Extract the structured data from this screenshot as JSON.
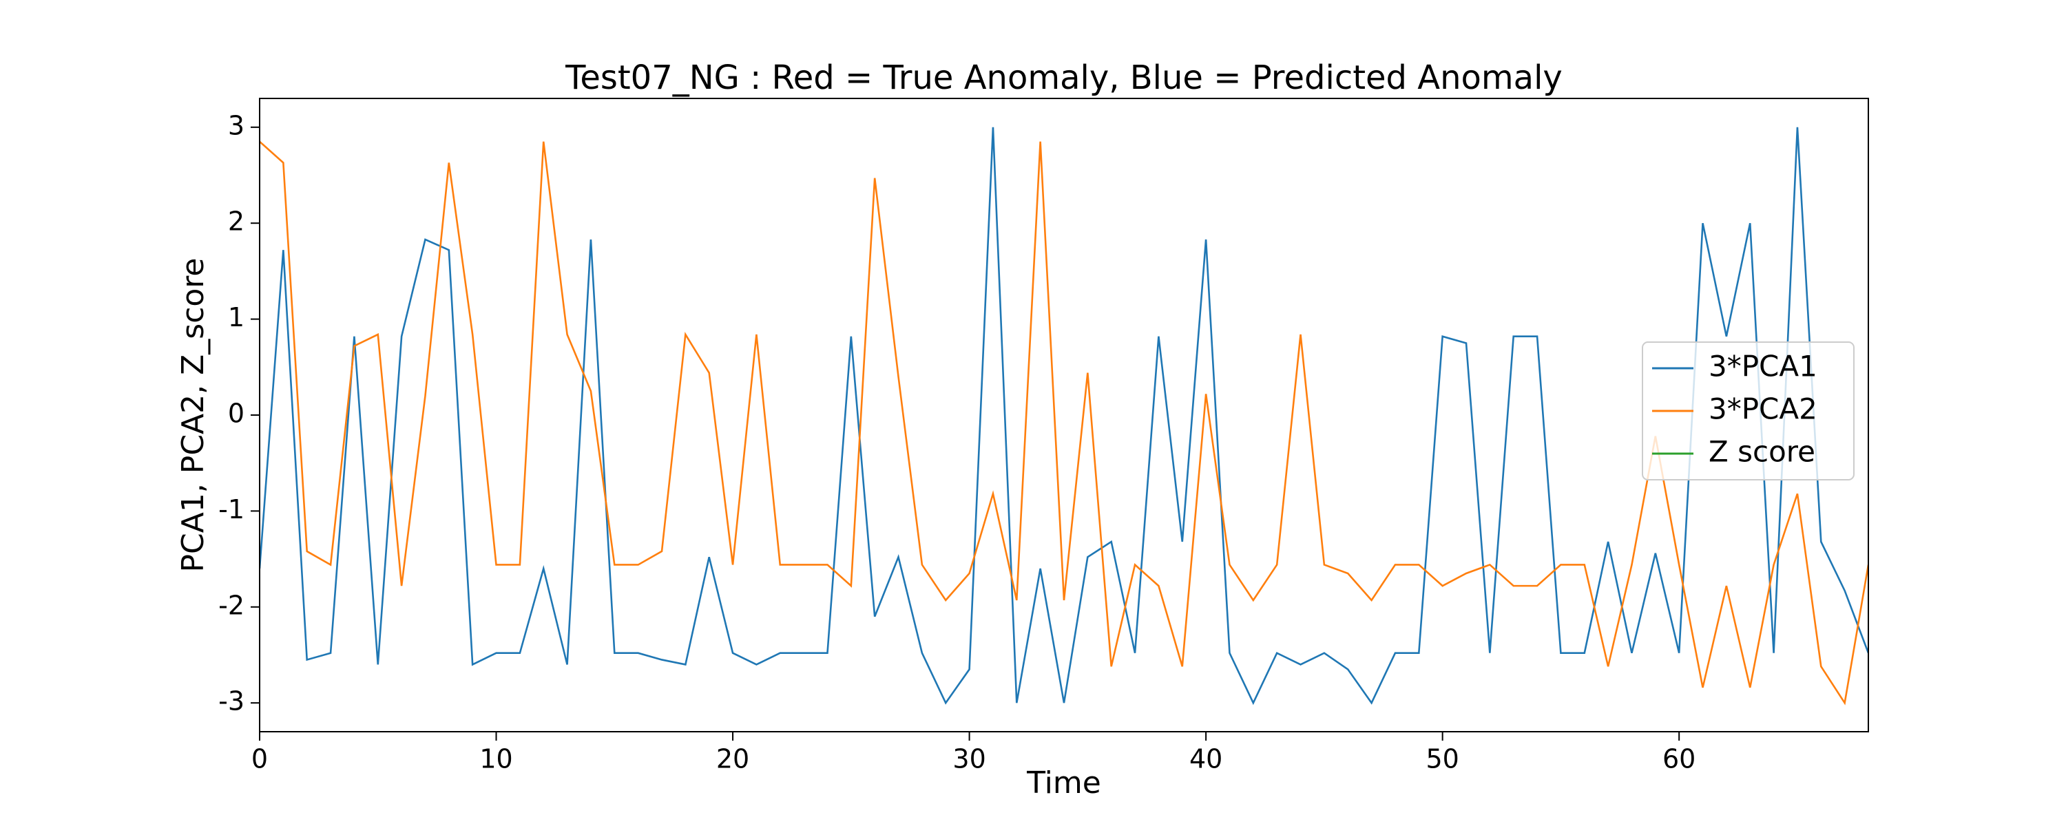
{
  "chart_data": {
    "type": "line",
    "title": "Test07_NG : Red = True Anomaly, Blue = Predicted Anomaly",
    "x_label": "Time",
    "y_label": "PCA1, PCA2, Z_score",
    "x": [
      0,
      1,
      2,
      3,
      4,
      5,
      6,
      7,
      8,
      9,
      10,
      11,
      12,
      13,
      14,
      15,
      16,
      17,
      18,
      19,
      20,
      21,
      22,
      23,
      24,
      25,
      26,
      27,
      28,
      29,
      30,
      31,
      32,
      33,
      34,
      35,
      36,
      37,
      38,
      39,
      40,
      41,
      42,
      43,
      44,
      45,
      46,
      47,
      48,
      49,
      50,
      51,
      52,
      53,
      54,
      55,
      56,
      57,
      58,
      59,
      60,
      61,
      62,
      63,
      64,
      65,
      66,
      67,
      68
    ],
    "series": [
      {
        "name": "3*PCA1",
        "color": "#1f77b4",
        "values": [
          -1.6,
          1.72,
          -2.55,
          -2.48,
          0.82,
          -2.6,
          0.82,
          1.83,
          1.72,
          -2.6,
          -2.48,
          -2.48,
          -1.6,
          -2.6,
          1.83,
          -2.48,
          -2.48,
          -2.55,
          -2.6,
          -1.48,
          -2.48,
          -2.6,
          -2.48,
          -2.48,
          -2.48,
          0.82,
          -2.1,
          -1.48,
          -2.48,
          -3.0,
          -2.65,
          3.0,
          -3.0,
          -1.6,
          -3.0,
          -1.48,
          -1.32,
          -2.48,
          0.82,
          -1.32,
          1.83,
          -2.48,
          -3.0,
          -2.48,
          -2.6,
          -2.48,
          -2.65,
          -3.0,
          -2.48,
          -2.48,
          0.82,
          0.75,
          -2.48,
          0.82,
          0.82,
          -2.48,
          -2.48,
          -1.32,
          -2.48,
          -1.44,
          -2.48,
          2.0,
          0.82,
          2.0,
          -2.48,
          3.0,
          -1.32,
          -1.83,
          -2.48
        ]
      },
      {
        "name": "3*PCA2",
        "color": "#ff7f0e",
        "values": [
          2.85,
          2.63,
          -1.42,
          -1.56,
          0.72,
          0.84,
          -1.78,
          0.2,
          2.63,
          0.84,
          -1.56,
          -1.56,
          2.85,
          0.84,
          0.25,
          -1.56,
          -1.56,
          -1.42,
          0.84,
          0.44,
          -1.56,
          0.84,
          -1.56,
          -1.56,
          -1.56,
          -1.78,
          2.47,
          0.4,
          -1.56,
          -1.93,
          -1.65,
          -0.82,
          -1.93,
          2.85,
          -1.93,
          0.44,
          -2.62,
          -1.56,
          -1.78,
          -2.62,
          0.22,
          -1.56,
          -1.93,
          -1.56,
          0.84,
          -1.56,
          -1.65,
          -1.93,
          -1.56,
          -1.56,
          -1.78,
          -1.65,
          -1.56,
          -1.78,
          -1.78,
          -1.56,
          -1.56,
          -2.62,
          -1.56,
          -0.22,
          -1.56,
          -2.84,
          -1.78,
          -2.84,
          -1.56,
          -0.82,
          -2.62,
          -3.0,
          -1.56
        ]
      },
      {
        "name": "Z score",
        "color": "#2ca02c",
        "values": [
          null,
          null,
          null,
          null,
          null,
          null,
          null,
          null,
          null,
          null,
          null,
          null,
          null,
          null,
          null,
          null,
          null,
          null,
          null,
          null,
          null,
          null,
          null,
          null,
          null,
          null,
          null,
          null,
          null,
          null,
          null,
          null,
          null,
          null,
          null,
          null,
          null,
          null,
          null,
          null,
          null,
          null,
          null,
          null,
          null,
          null,
          null,
          null,
          null,
          null,
          null,
          null,
          null,
          null,
          null,
          null,
          null,
          null,
          null,
          null,
          null,
          null,
          null,
          null,
          null,
          null,
          null,
          null,
          null
        ]
      }
    ],
    "xlim": [
      0,
      68
    ],
    "xticks": [
      0,
      10,
      20,
      30,
      40,
      50,
      60
    ],
    "ylim": [
      -3.3,
      3.3
    ],
    "yticks": [
      -3,
      -2,
      -1,
      0,
      1,
      2,
      3
    ],
    "grid": false,
    "legend": "center right"
  }
}
